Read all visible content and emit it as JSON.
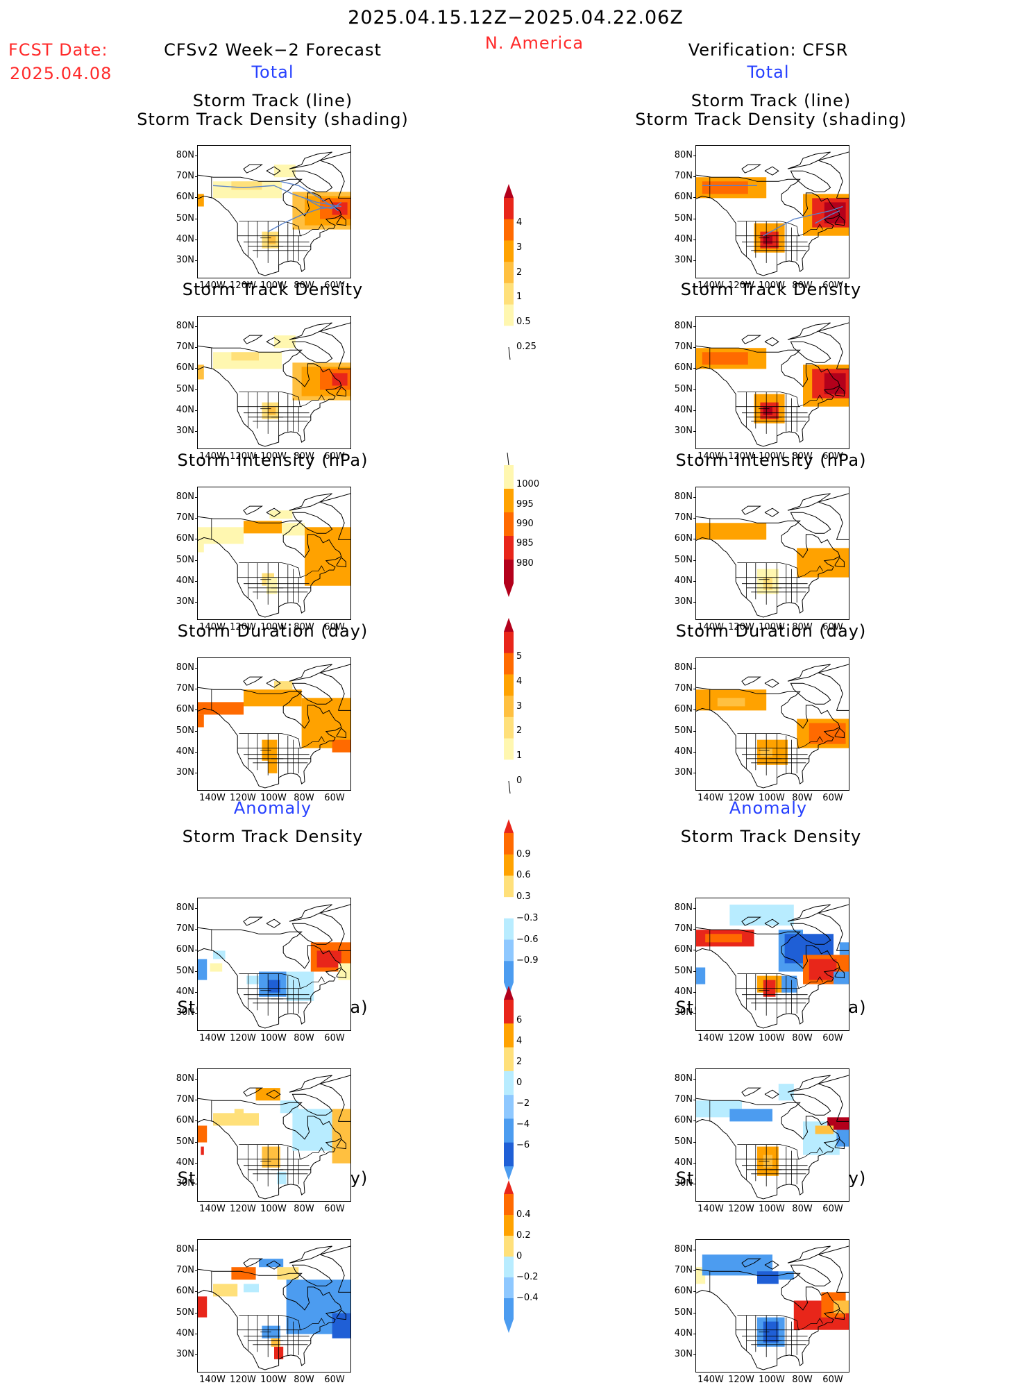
{
  "header": {
    "date_range": "2025.04.15.12Z−2025.04.22.06Z",
    "region": "N. America",
    "fcst_date_label": "FCST Date:",
    "fcst_date_value": "2025.04.08",
    "left_title": "CFSv2 Week−2 Forecast",
    "right_title": "Verification: CFSR",
    "total_label": "Total",
    "anomaly_label": "Anomaly"
  },
  "panels": {
    "track_line_1": "Storm Track (line)",
    "track_line_2": "Storm Track Density (shading)",
    "track_density": "Storm Track Density",
    "intensity": "Storm Intensity (hPa)",
    "duration": "Storm Duration (day)"
  },
  "axes": {
    "lat": [
      "80N",
      "70N",
      "60N",
      "50N",
      "40N",
      "30N"
    ],
    "lon": [
      "140W",
      "120W",
      "100W",
      "80W",
      "60W"
    ]
  },
  "colorbars": {
    "density": [
      "4",
      "3",
      "2",
      "1",
      "0.5",
      "0.25"
    ],
    "intensity": [
      "1000",
      "995",
      "990",
      "985",
      "980"
    ],
    "duration": [
      "5",
      "4",
      "3",
      "2",
      "1",
      "0"
    ],
    "density_anom": [
      "0.9",
      "0.6",
      "0.3",
      "−0.3",
      "−0.6",
      "−0.9"
    ],
    "intensity_anom": [
      "6",
      "4",
      "2",
      "0",
      "−2",
      "−4",
      "−6"
    ],
    "duration_anom": [
      "0.4",
      "0.2",
      "0",
      "−0.2",
      "−0.4"
    ]
  },
  "colors": {
    "light_yellow": "#fff7b0",
    "yellow": "#ffe07a",
    "orange_light": "#ffc040",
    "orange": "#ffa200",
    "orange_dark": "#ff6a00",
    "red": "#e8261a",
    "dark_red": "#b3001b",
    "light_blue": "#b8ecff",
    "blue_mid": "#8ec8ff",
    "blue": "#4c9cf0",
    "blue_dark": "#1f5fd6",
    "title_blue": "#2640ff",
    "header_red": "#ff2a2a"
  }
}
